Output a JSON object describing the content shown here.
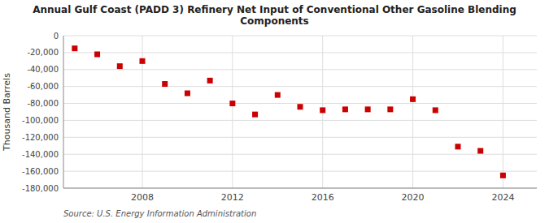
{
  "chart_data": {
    "type": "scatter",
    "title": "Annual Gulf Coast (PADD 3) Refinery Net Input of Conventional Other Gasoline Blending\nComponents",
    "ylabel": "Thousand Barrels",
    "source": "Source: U.S. Energy Information Administration",
    "x": [
      2005,
      2006,
      2007,
      2008,
      2009,
      2010,
      2011,
      2012,
      2013,
      2014,
      2015,
      2016,
      2017,
      2018,
      2019,
      2020,
      2021,
      2022,
      2023,
      2024
    ],
    "values": [
      -15000,
      -22000,
      -36000,
      -30000,
      -57000,
      -68000,
      -53000,
      -80000,
      -93000,
      -70000,
      -84000,
      -88000,
      -87000,
      -87000,
      -87000,
      -75000,
      -88000,
      -131000,
      -136000,
      -165000
    ],
    "color": "#cc0000",
    "marker": "square",
    "xlim": [
      2004.5,
      2025.5
    ],
    "xticks": [
      2008,
      2012,
      2016,
      2020,
      2024
    ],
    "ylim": [
      -180000,
      0
    ],
    "yticks": [
      0,
      {
        "value": -20000,
        "label": "-20,000"
      },
      {
        "value": -40000,
        "label": "-40,000"
      },
      {
        "value": -60000,
        "label": "-60,000"
      },
      {
        "value": -80000,
        "label": "-80,000"
      },
      {
        "value": -100000,
        "label": "-100,000"
      },
      {
        "value": -120000,
        "label": "-120,000"
      },
      {
        "value": -140000,
        "label": "-140,000"
      },
      {
        "value": -160000,
        "label": "-160,000"
      },
      {
        "value": -180000,
        "label": "-180,000"
      }
    ],
    "grid": true
  }
}
